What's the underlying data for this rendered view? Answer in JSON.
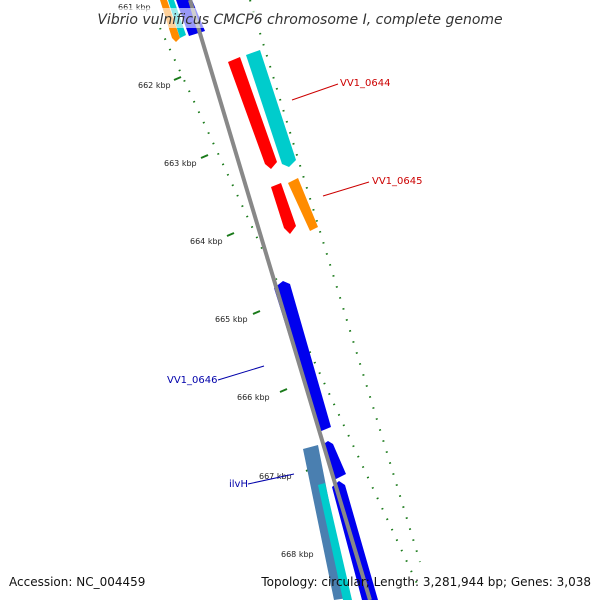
{
  "title": "Vibrio vulnificus CMCP6 chromosome I, complete genome",
  "footer": {
    "accession": "Accession: NC_004459",
    "summary": "Topology: circular; Length: 3,281,944 bp; Genes: 3,038"
  },
  "ticks": [
    "661 kbp",
    "662 kbp",
    "663 kbp",
    "664 kbp",
    "665 kbp",
    "666 kbp",
    "667 kbp",
    "668 kbp"
  ],
  "gene_labels": {
    "vv1_0644": "VV1_0644",
    "vv1_0645": "VV1_0645",
    "vv1_0646": "VV1_0646",
    "ilvh": "ilvH"
  },
  "colors": {
    "backbone": "#888888",
    "tick": "#1a7a1a",
    "red": "#ff0000",
    "cyan": "#00cccc",
    "orange": "#ff8c00",
    "blue": "#0000ee",
    "steelblue": "#4a7fb0",
    "red_label": "#cc0000",
    "blue_label": "#0000aa"
  }
}
